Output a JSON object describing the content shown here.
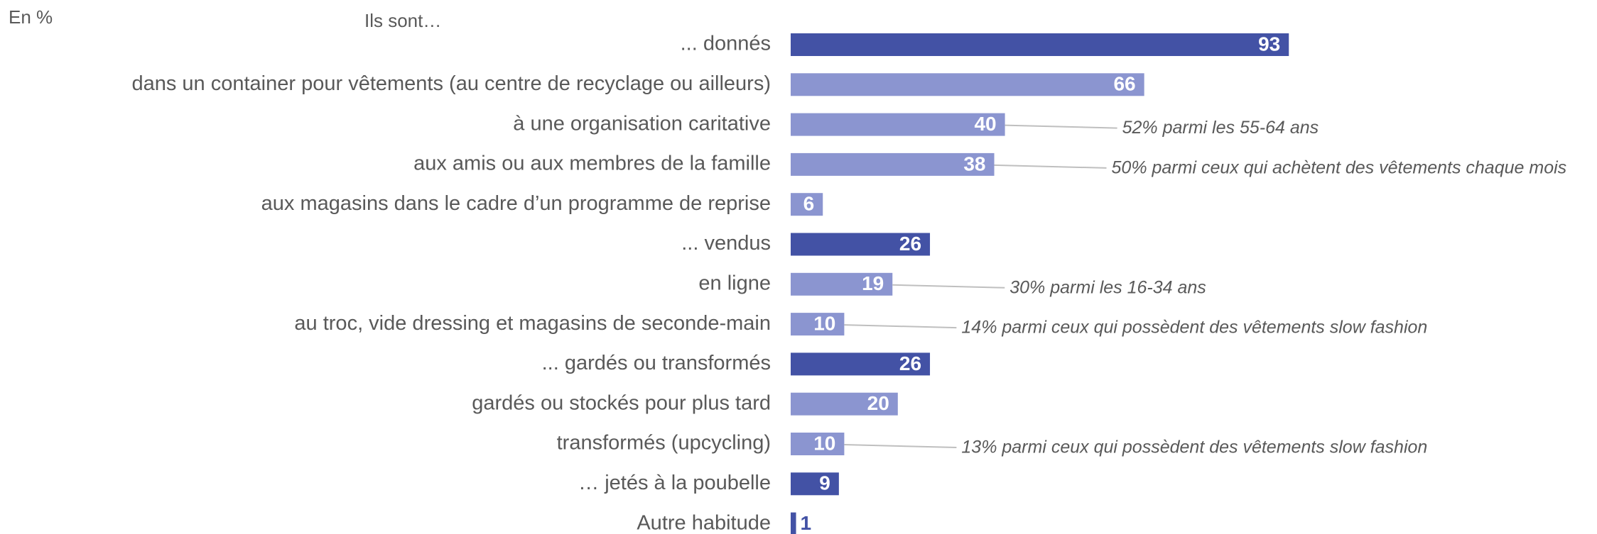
{
  "chart_data": {
    "type": "bar",
    "orientation": "horizontal",
    "unit_label": "En %",
    "subtitle": "Ils sont…",
    "categories": [
      "... donnés",
      "dans un container pour vêtements (au centre de recyclage ou ailleurs)",
      "à une organisation caritative",
      "aux amis ou aux membres de la famille",
      "aux magasins dans le cadre d’un programme de reprise",
      "... vendus",
      "en ligne",
      "au troc, vide dressing et magasins de seconde-main",
      "... gardés ou transformés",
      "gardés ou stockés pour plus tard",
      "transformés (upcycling)",
      "… jetés à la poubelle",
      "Autre habitude"
    ],
    "values": [
      93,
      66,
      40,
      38,
      6,
      26,
      19,
      10,
      26,
      20,
      10,
      9,
      1
    ],
    "colors": [
      "#4352a5",
      "#8b95d0",
      "#8b95d0",
      "#8b95d0",
      "#8b95d0",
      "#4352a5",
      "#8b95d0",
      "#8b95d0",
      "#4352a5",
      "#8b95d0",
      "#8b95d0",
      "#4352a5",
      "#4352a5"
    ],
    "annotations": [
      null,
      null,
      "52% parmi les 55-64 ans",
      "50% parmi ceux qui achètent des vêtements chaque mois",
      null,
      null,
      "30% parmi les 16-34 ans",
      "14% parmi ceux qui possèdent des vêtements slow fashion",
      null,
      null,
      "13% parmi ceux qui possèdent des vêtements slow fashion",
      null,
      null
    ]
  }
}
